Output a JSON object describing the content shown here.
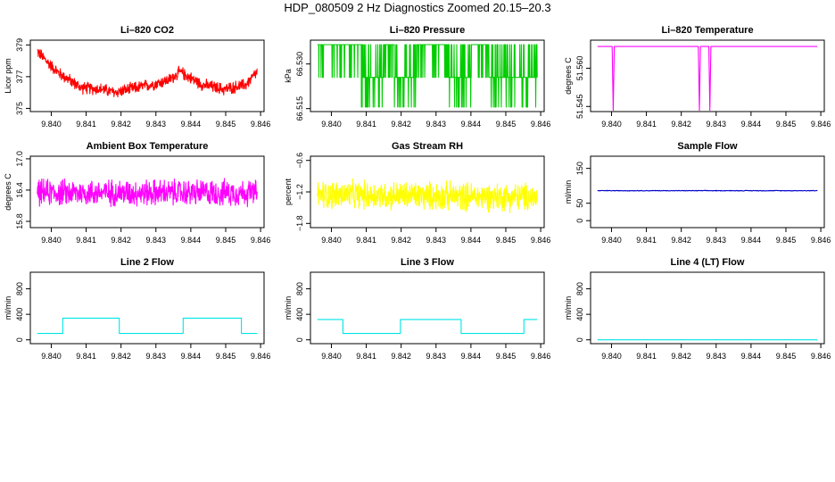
{
  "page_title": "HDP_080509  2 Hz Diagnostics Zoomed 20.15–20.3",
  "colors": {
    "red": "#ff0000",
    "green": "#00cc00",
    "magenta": "#ff00ff",
    "yellow": "#ffff00",
    "blue": "#0000cc",
    "cyan": "#00e5e5"
  },
  "chart_data": [
    {
      "type": "line",
      "title": "Li–820 CO2",
      "ylabel": "Licor ppm",
      "color": "red",
      "xlim": [
        9.8394,
        9.8461
      ],
      "ylim": [
        374.8,
        379.3
      ],
      "yticks": [
        375,
        377,
        379
      ],
      "ytick_labels": [
        "375",
        "377",
        "379"
      ],
      "xticks": [
        9.84,
        9.841,
        9.842,
        9.843,
        9.844,
        9.845,
        9.846
      ],
      "xtick_labels": [
        "9.840",
        "9.841",
        "9.842",
        "9.843",
        "9.844",
        "9.845",
        "9.846"
      ],
      "series": {
        "kind": "noise",
        "start": 9.8396,
        "end": 9.8459,
        "n": 700,
        "base": [
          [
            0,
            378.6
          ],
          [
            0.04,
            378.0
          ],
          [
            0.1,
            377.2
          ],
          [
            0.2,
            376.3
          ],
          [
            0.3,
            376.2
          ],
          [
            0.35,
            376.0
          ],
          [
            0.45,
            376.3
          ],
          [
            0.55,
            376.6
          ],
          [
            0.6,
            376.8
          ],
          [
            0.65,
            377.3
          ],
          [
            0.75,
            376.5
          ],
          [
            0.85,
            376.2
          ],
          [
            0.95,
            376.5
          ],
          [
            1,
            377.3
          ]
        ],
        "amp": 0.45
      }
    },
    {
      "type": "line",
      "title": "Li–820 Pressure",
      "ylabel": "kPa",
      "color": "green",
      "xlim": [
        9.8394,
        9.8461
      ],
      "ylim": [
        66.514,
        66.538
      ],
      "yticks": [
        66.515,
        66.53
      ],
      "ytick_labels": [
        "66.515",
        "66.530"
      ],
      "xticks": [
        9.84,
        9.841,
        9.842,
        9.843,
        9.844,
        9.845,
        9.846
      ],
      "xtick_labels": [
        "9.840",
        "9.841",
        "9.842",
        "9.843",
        "9.844",
        "9.845",
        "9.846"
      ],
      "series": {
        "kind": "levels",
        "start": 9.8396,
        "end": 9.8459,
        "n": 900,
        "levels": [
          66.5155,
          66.5255,
          66.5365
        ],
        "segments": [
          [
            0,
            0.2,
            2
          ],
          [
            0.2,
            0.3,
            1
          ],
          [
            0.3,
            0.35,
            2
          ],
          [
            0.35,
            0.45,
            1
          ],
          [
            0.45,
            0.6,
            2
          ],
          [
            0.6,
            0.7,
            1
          ],
          [
            0.7,
            0.78,
            2
          ],
          [
            0.78,
            1,
            1
          ]
        ]
      }
    },
    {
      "type": "line",
      "title": "Li–820 Temperature",
      "ylabel": "degrees C",
      "color": "magenta",
      "xlim": [
        9.8394,
        9.8461
      ],
      "ylim": [
        51.543,
        51.571
      ],
      "yticks": [
        51.545,
        51.56
      ],
      "ytick_labels": [
        "51.545",
        "51.560"
      ],
      "xticks": [
        9.84,
        9.841,
        9.842,
        9.843,
        9.844,
        9.845,
        9.846
      ],
      "xtick_labels": [
        "9.840",
        "9.841",
        "9.842",
        "9.843",
        "9.844",
        "9.845",
        "9.846"
      ],
      "series": {
        "kind": "dips",
        "start": 9.8396,
        "end": 9.8459,
        "value": 51.5685,
        "dip_value": 51.5435,
        "dips": [
          9.84005,
          9.84252,
          9.84282
        ]
      }
    },
    {
      "type": "line",
      "title": "Ambient Box Temperature",
      "ylabel": "degrees C",
      "color": "magenta",
      "xlim": [
        9.8394,
        9.8461
      ],
      "ylim": [
        15.68,
        17.05
      ],
      "yticks": [
        15.8,
        16.4,
        17.0
      ],
      "ytick_labels": [
        "15.8",
        "16.4",
        "17.0"
      ],
      "xticks": [
        9.84,
        9.841,
        9.842,
        9.843,
        9.844,
        9.845,
        9.846
      ],
      "xtick_labels": [
        "9.840",
        "9.841",
        "9.842",
        "9.843",
        "9.844",
        "9.845",
        "9.846"
      ],
      "series": {
        "kind": "noise",
        "start": 9.8396,
        "end": 9.8459,
        "n": 700,
        "base": [
          [
            0,
            16.35
          ],
          [
            1,
            16.35
          ]
        ],
        "amp": 0.3
      }
    },
    {
      "type": "line",
      "title": "Gas Stream RH",
      "ylabel": "percent",
      "color": "yellow",
      "xlim": [
        9.8394,
        9.8461
      ],
      "ylim": [
        -1.88,
        -0.52
      ],
      "yticks": [
        -1.8,
        -1.2,
        -0.6
      ],
      "ytick_labels": [
        "−1.8",
        "−1.2",
        "−0.6"
      ],
      "xticks": [
        9.84,
        9.841,
        9.842,
        9.843,
        9.844,
        9.845,
        9.846
      ],
      "xtick_labels": [
        "9.840",
        "9.841",
        "9.842",
        "9.843",
        "9.844",
        "9.845",
        "9.846"
      ],
      "series": {
        "kind": "noise",
        "start": 9.8396,
        "end": 9.8459,
        "n": 700,
        "base": [
          [
            0,
            -1.25
          ],
          [
            1,
            -1.3
          ]
        ],
        "amp": 0.32
      }
    },
    {
      "type": "line",
      "title": "Sample Flow",
      "ylabel": "ml/min",
      "color": "blue",
      "xlim": [
        9.8394,
        9.8461
      ],
      "ylim": [
        -20,
        185
      ],
      "yticks": [
        0,
        50,
        150
      ],
      "ytick_labels": [
        "0",
        "50",
        "150"
      ],
      "xticks": [
        9.84,
        9.841,
        9.842,
        9.843,
        9.844,
        9.845,
        9.846
      ],
      "xtick_labels": [
        "9.840",
        "9.841",
        "9.842",
        "9.843",
        "9.844",
        "9.845",
        "9.846"
      ],
      "series": {
        "kind": "noise",
        "start": 9.8396,
        "end": 9.8459,
        "n": 500,
        "base": [
          [
            0,
            86
          ],
          [
            1,
            86
          ]
        ],
        "amp": 1.2
      }
    },
    {
      "type": "line",
      "title": "Line 2 Flow",
      "ylabel": "ml/min",
      "color": "cyan",
      "xlim": [
        9.8394,
        9.8461
      ],
      "ylim": [
        -60,
        1060
      ],
      "yticks": [
        0,
        400,
        800
      ],
      "ytick_labels": [
        "0",
        "400",
        "800"
      ],
      "xticks": [
        9.84,
        9.841,
        9.842,
        9.843,
        9.844,
        9.845,
        9.846
      ],
      "xtick_labels": [
        "9.840",
        "9.841",
        "9.842",
        "9.843",
        "9.844",
        "9.845",
        "9.846"
      ],
      "series": {
        "kind": "step",
        "start": 9.8396,
        "end": 9.8459,
        "low": 100,
        "high": 340,
        "high_intervals": [
          [
            9.84033,
            9.84195
          ],
          [
            9.84378,
            9.84545
          ]
        ]
      }
    },
    {
      "type": "line",
      "title": "Line 3 Flow",
      "ylabel": "ml/min",
      "color": "cyan",
      "xlim": [
        9.8394,
        9.8461
      ],
      "ylim": [
        -60,
        1060
      ],
      "yticks": [
        0,
        400,
        800
      ],
      "ytick_labels": [
        "0",
        "400",
        "800"
      ],
      "xticks": [
        9.84,
        9.841,
        9.842,
        9.843,
        9.844,
        9.845,
        9.846
      ],
      "xtick_labels": [
        "9.840",
        "9.841",
        "9.842",
        "9.843",
        "9.844",
        "9.845",
        "9.846"
      ],
      "series": {
        "kind": "step",
        "start": 9.8396,
        "end": 9.8459,
        "low": 100,
        "high": 320,
        "high_intervals": [
          [
            9.8396,
            9.84033
          ],
          [
            9.84198,
            9.84372
          ],
          [
            9.84552,
            9.8459
          ]
        ]
      }
    },
    {
      "type": "line",
      "title": "Line 4 (LT) Flow",
      "ylabel": "ml/min",
      "color": "cyan",
      "xlim": [
        9.8394,
        9.8461
      ],
      "ylim": [
        -60,
        1060
      ],
      "yticks": [
        0,
        400,
        800
      ],
      "ytick_labels": [
        "0",
        "400",
        "800"
      ],
      "xticks": [
        9.84,
        9.841,
        9.842,
        9.843,
        9.844,
        9.845,
        9.846
      ],
      "xtick_labels": [
        "9.840",
        "9.841",
        "9.842",
        "9.843",
        "9.844",
        "9.845",
        "9.846"
      ],
      "series": {
        "kind": "flat",
        "start": 9.8396,
        "end": 9.8459,
        "value": 0
      }
    }
  ]
}
